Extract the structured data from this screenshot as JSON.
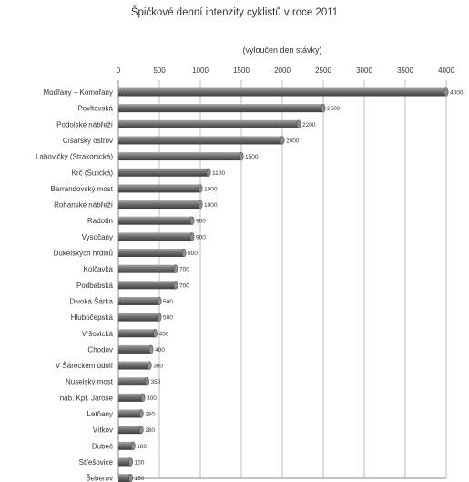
{
  "chart_data": {
    "type": "bar",
    "orientation": "horizontal",
    "title": "Špičkové denní intenzity cyklistů v roce 2011",
    "subtitle": "(vyloučen den stávky)",
    "xlim": [
      0,
      4000
    ],
    "xticks": [
      0,
      500,
      1000,
      1500,
      2000,
      2500,
      3000,
      3500,
      4000
    ],
    "grid": true,
    "colors": {
      "bar": "#6e6e6e",
      "bar_highlight": "#9a9a9a",
      "bar_shadow": "#3a3a3a",
      "grid": "#bfbfbf"
    },
    "categories": [
      "Modřany – Komořany",
      "Povltavská",
      "Podolské nábřeží",
      "Císařský ostrov",
      "Lahovičky (Strakonická)",
      "Krč (Sulická)",
      "Barrandovský most",
      "Rohanské nábřeží",
      "Radotín",
      "Vysočany",
      "Dukelských hrdinů",
      "Kolčavka",
      "Podbabská",
      "Divoká Šárka",
      "Hlubočepská",
      "Vršovická",
      "Chodov",
      "V Šáreckém údolí",
      "Nuselský most",
      "náb. Kpt. Jaroše",
      "Letňany",
      "Vítkov",
      "Dubeč",
      "Střešovice",
      "Šeberov"
    ],
    "values": [
      4000,
      2500,
      2200,
      2000,
      1500,
      1100,
      1000,
      1000,
      900,
      900,
      800,
      700,
      700,
      500,
      500,
      450,
      400,
      380,
      350,
      300,
      280,
      280,
      180,
      150,
      150
    ]
  }
}
